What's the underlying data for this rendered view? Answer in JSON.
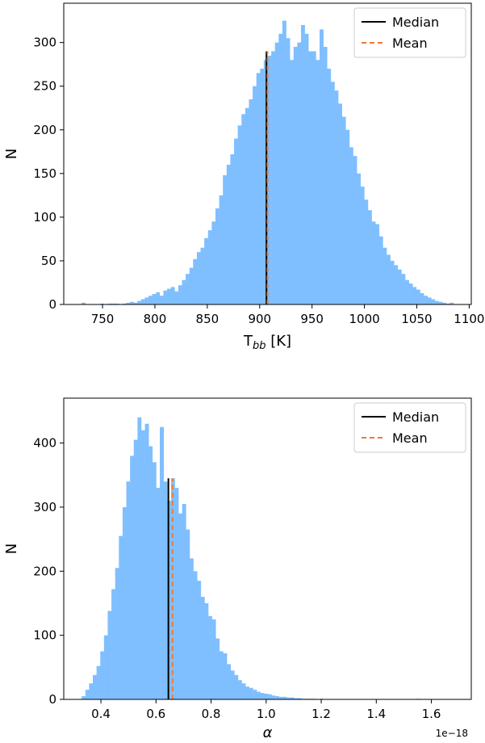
{
  "chart_data": [
    {
      "type": "bar",
      "xlabel_main": "T",
      "xlabel_sub": "bb",
      "xlabel_unit": " [K]",
      "ylabel": "N",
      "xlim": [
        713,
        1102
      ],
      "ylim": [
        0,
        345
      ],
      "xticks": [
        750,
        800,
        850,
        900,
        950,
        1000,
        1050,
        1100
      ],
      "yticks": [
        0,
        50,
        100,
        150,
        200,
        250,
        300
      ],
      "bar_color": "#7fbfff",
      "bins": {
        "start": 730,
        "width": 3.55,
        "counts": [
          2,
          0,
          0,
          0,
          0,
          1,
          0,
          1,
          1,
          1,
          0,
          1,
          2,
          3,
          2,
          4,
          6,
          8,
          10,
          12,
          14,
          10,
          16,
          18,
          20,
          15,
          22,
          28,
          35,
          42,
          52,
          60,
          65,
          76,
          85,
          95,
          110,
          125,
          148,
          160,
          172,
          190,
          205,
          218,
          225,
          235,
          250,
          265,
          270,
          280,
          285,
          290,
          300,
          310,
          325,
          305,
          280,
          295,
          300,
          320,
          310,
          290,
          290,
          280,
          315,
          295,
          270,
          255,
          245,
          230,
          215,
          200,
          180,
          170,
          150,
          135,
          120,
          108,
          95,
          92,
          78,
          65,
          57,
          50,
          45,
          40,
          35,
          28,
          24,
          20,
          17,
          13,
          10,
          8,
          6,
          4,
          3,
          2,
          1,
          2
        ]
      },
      "lines": [
        {
          "name": "Median",
          "x": 906.5,
          "y_top": 290,
          "color": "#000000",
          "dash": "none"
        },
        {
          "name": "Mean",
          "x": 907.5,
          "y_top": 290,
          "color": "#f07a35",
          "dash": "6,4"
        }
      ],
      "legend_position": "top-right"
    },
    {
      "type": "bar",
      "xlabel": "α",
      "ylabel": "N",
      "offset_text": "1e−18",
      "xlim": [
        0.265,
        1.745
      ],
      "ylim": [
        0,
        470
      ],
      "xticks": [
        "0.4",
        "0.6",
        "0.8",
        "1.0",
        "1.2",
        "1.4",
        "1.6"
      ],
      "xtick_values": [
        0.4,
        0.6,
        0.8,
        1.0,
        1.2,
        1.4,
        1.6
      ],
      "yticks": [
        0,
        100,
        200,
        300,
        400
      ],
      "bar_color": "#7fbfff",
      "bins": {
        "start": 0.33,
        "width": 0.01352,
        "counts": [
          5,
          15,
          25,
          38,
          52,
          75,
          100,
          138,
          172,
          205,
          255,
          300,
          340,
          380,
          405,
          440,
          420,
          430,
          395,
          370,
          330,
          425,
          340,
          310,
          345,
          330,
          290,
          305,
          265,
          220,
          200,
          185,
          160,
          150,
          130,
          125,
          95,
          75,
          72,
          55,
          45,
          38,
          30,
          25,
          20,
          18,
          15,
          12,
          10,
          9,
          8,
          6,
          5,
          4,
          4,
          3,
          3,
          2,
          2,
          1,
          1,
          1,
          1,
          0,
          1,
          0,
          0,
          0,
          0,
          0,
          0,
          0,
          0,
          0,
          0,
          0,
          0,
          0,
          0,
          0,
          0,
          0,
          0,
          0,
          0,
          0,
          0,
          0,
          0,
          0,
          1
        ]
      },
      "lines": [
        {
          "name": "Median",
          "x": 0.645,
          "y_top": 345,
          "color": "#000000",
          "dash": "none"
        },
        {
          "name": "Mean",
          "x": 0.66,
          "y_top": 345,
          "color": "#f07a35",
          "dash": "6,4"
        }
      ],
      "legend_position": "top-right"
    }
  ],
  "legend": {
    "median_label": "Median",
    "mean_label": "Mean"
  }
}
